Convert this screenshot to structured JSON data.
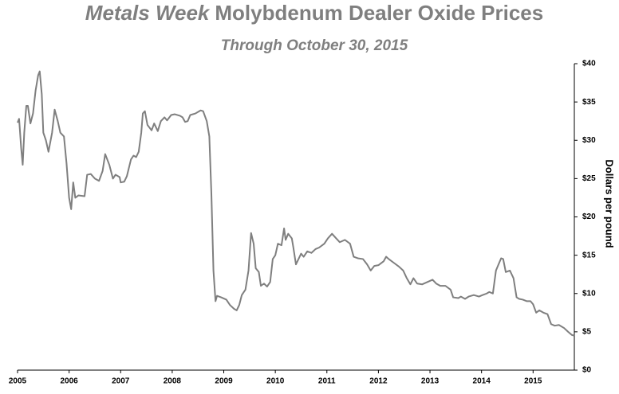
{
  "chart_data": {
    "type": "line",
    "title": {
      "italic": "Metals Week",
      "text": "Molybdenum Dealer Oxide Prices"
    },
    "subtitle": "Through October 30, 2015",
    "y_label": "Dollars per pound",
    "color": "#7f7f7f",
    "xlim": [
      2005,
      2015.8
    ],
    "xticks": [
      2005,
      2006,
      2007,
      2008,
      2009,
      2010,
      2011,
      2012,
      2013,
      2014,
      2015
    ],
    "ylim": [
      0,
      40
    ],
    "yticks": [
      {
        "value": 0,
        "label": "$0"
      },
      {
        "value": 5,
        "label": "$5"
      },
      {
        "value": 10,
        "label": "$10"
      },
      {
        "value": 15,
        "label": "$15"
      },
      {
        "value": 20,
        "label": "$20"
      },
      {
        "value": 25,
        "label": "$25"
      },
      {
        "value": 30,
        "label": "$30"
      },
      {
        "value": 35,
        "label": "$35"
      },
      {
        "value": 40,
        "label": "$40"
      }
    ],
    "x": [
      2005.0,
      2005.03,
      2005.07,
      2005.1,
      2005.13,
      2005.17,
      2005.2,
      2005.25,
      2005.3,
      2005.35,
      2005.4,
      2005.43,
      2005.47,
      2005.5,
      2005.55,
      2005.6,
      2005.67,
      2005.72,
      2005.78,
      2005.83,
      2005.9,
      2005.95,
      2006.0,
      2006.04,
      2006.08,
      2006.12,
      2006.18,
      2006.3,
      2006.35,
      2006.42,
      2006.5,
      2006.58,
      2006.65,
      2006.7,
      2006.78,
      2006.85,
      2006.9,
      2006.98,
      2007.0,
      2007.07,
      2007.12,
      2007.2,
      2007.25,
      2007.3,
      2007.35,
      2007.4,
      2007.43,
      2007.47,
      2007.52,
      2007.6,
      2007.65,
      2007.72,
      2007.78,
      2007.85,
      2007.9,
      2007.98,
      2008.05,
      2008.15,
      2008.2,
      2008.25,
      2008.3,
      2008.35,
      2008.45,
      2008.55,
      2008.6,
      2008.67,
      2008.72,
      2008.76,
      2008.8,
      2008.84,
      2008.87,
      2008.95,
      2009.05,
      2009.12,
      2009.2,
      2009.25,
      2009.3,
      2009.35,
      2009.42,
      2009.48,
      2009.53,
      2009.58,
      2009.62,
      2009.68,
      2009.72,
      2009.78,
      2009.84,
      2009.9,
      2009.95,
      2010.0,
      2010.05,
      2010.12,
      2010.17,
      2010.2,
      2010.25,
      2010.32,
      2010.35,
      2010.4,
      2010.45,
      2010.5,
      2010.55,
      2010.62,
      2010.7,
      2010.78,
      2010.85,
      2010.95,
      2011.02,
      2011.1,
      2011.18,
      2011.25,
      2011.35,
      2011.45,
      2011.52,
      2011.6,
      2011.7,
      2011.78,
      2011.85,
      2011.92,
      2012.0,
      2012.1,
      2012.15,
      2012.2,
      2012.3,
      2012.4,
      2012.48,
      2012.55,
      2012.62,
      2012.68,
      2012.75,
      2012.85,
      2012.95,
      2013.05,
      2013.12,
      2013.2,
      2013.3,
      2013.4,
      2013.45,
      2013.55,
      2013.6,
      2013.68,
      2013.75,
      2013.85,
      2013.95,
      2014.02,
      2014.1,
      2014.15,
      2014.22,
      2014.28,
      2014.33,
      2014.38,
      2014.42,
      2014.47,
      2014.55,
      2014.62,
      2014.68,
      2014.73,
      2014.8,
      2014.88,
      2014.95,
      2015.0,
      2015.06,
      2015.12,
      2015.2,
      2015.28,
      2015.35,
      2015.42,
      2015.5,
      2015.6,
      2015.68,
      2015.75,
      2015.8
    ],
    "values": [
      32.3,
      32.8,
      29,
      26.8,
      31,
      34.5,
      34.5,
      32.2,
      33.5,
      36.5,
      38.5,
      39,
      36,
      31,
      30,
      28.5,
      31,
      34,
      32.5,
      31,
      30.5,
      27,
      22.5,
      21,
      24.5,
      22.5,
      22.8,
      22.7,
      25.5,
      25.6,
      25,
      24.7,
      26,
      28.2,
      26.8,
      25,
      25.5,
      25.2,
      24.5,
      24.6,
      25.3,
      27.5,
      28,
      27.8,
      28.5,
      31,
      33.5,
      33.8,
      32,
      31.3,
      32.2,
      31.2,
      32.5,
      33,
      32.6,
      33.3,
      33.4,
      33.2,
      33,
      32.4,
      32.5,
      33.3,
      33.5,
      33.9,
      33.8,
      32.5,
      30.5,
      23,
      13,
      9,
      9.7,
      9.5,
      9.2,
      8.5,
      8,
      7.8,
      8.5,
      9.8,
      10.5,
      13,
      17.9,
      16.5,
      13.3,
      12.8,
      11,
      11.3,
      10.9,
      11.5,
      14.5,
      15,
      16.5,
      16.3,
      18.5,
      17,
      17.8,
      17.2,
      16,
      13.8,
      14.5,
      15.2,
      14.8,
      15.5,
      15.3,
      15.8,
      16,
      16.5,
      17.2,
      17.8,
      17.2,
      16.7,
      17,
      16.5,
      14.8,
      14.6,
      14.5,
      13.8,
      13,
      13.6,
      13.7,
      14.2,
      14.8,
      14.5,
      14,
      13.5,
      13,
      12,
      11.2,
      12,
      11.3,
      11.2,
      11.5,
      11.8,
      11.3,
      11,
      11,
      10.5,
      9.5,
      9.4,
      9.6,
      9.3,
      9.6,
      9.8,
      9.6,
      9.8,
      10,
      10.2,
      10,
      13,
      13.8,
      14.6,
      14.5,
      12.8,
      13,
      12,
      9.5,
      9.3,
      9.2,
      9,
      9,
      8.6,
      7.5,
      7.8,
      7.5,
      7.3,
      6,
      5.8,
      5.9,
      5.5,
      5,
      4.6,
      4.5
    ]
  }
}
